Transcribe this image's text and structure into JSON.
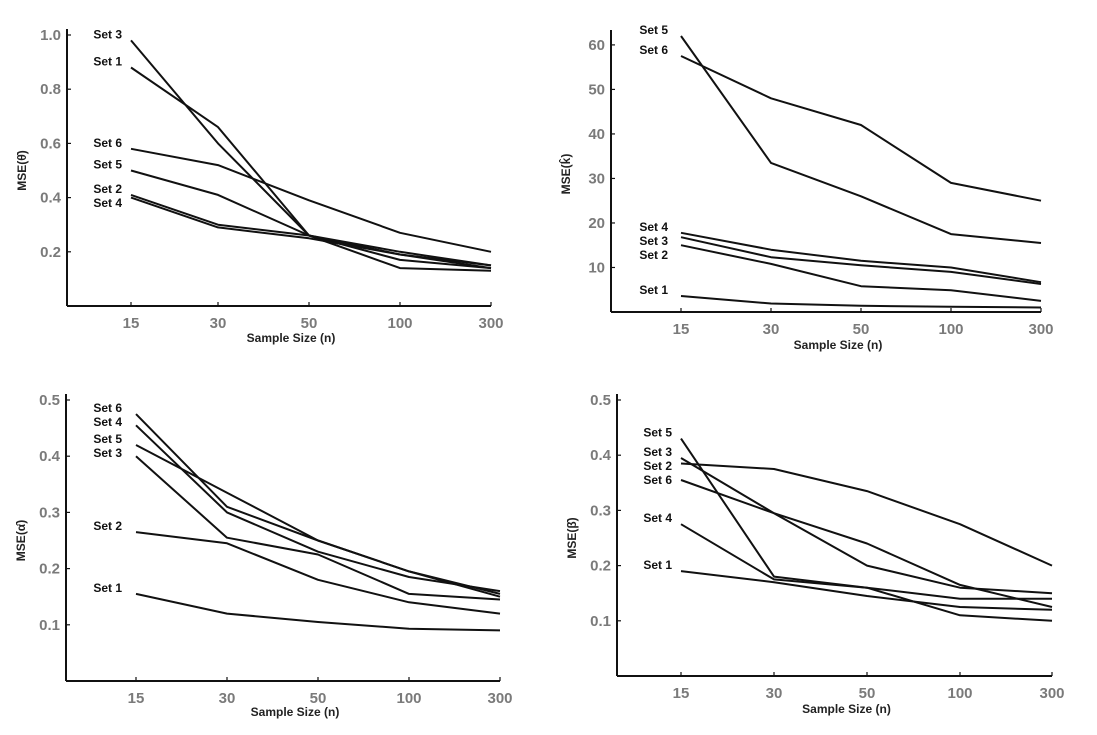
{
  "chart_data": [
    {
      "type": "line",
      "panel": "top-left",
      "title": "",
      "xlabel": "Sample Size (n)",
      "ylabel": "MSE(θ̂)",
      "x": [
        "15",
        "30",
        "50",
        "100",
        "300"
      ],
      "ylim": [
        0,
        1.0
      ],
      "yticks": [
        "0.2",
        "0.4",
        "0.6",
        "0.8",
        "1.0"
      ],
      "ytick_values": [
        0.2,
        0.4,
        0.6,
        0.8,
        1.0
      ],
      "grid": false,
      "legend": "inline-left",
      "series": [
        {
          "name": "Set 3",
          "values": [
            0.98,
            0.6,
            0.26,
            0.17,
            0.14
          ]
        },
        {
          "name": "Set 1",
          "values": [
            0.88,
            0.66,
            0.26,
            0.14,
            0.13
          ]
        },
        {
          "name": "Set 6",
          "values": [
            0.58,
            0.52,
            0.39,
            0.27,
            0.2
          ]
        },
        {
          "name": "Set 5",
          "values": [
            0.5,
            0.41,
            0.26,
            0.19,
            0.15
          ]
        },
        {
          "name": "Set 2",
          "values": [
            0.41,
            0.3,
            0.26,
            0.2,
            0.15
          ]
        },
        {
          "name": "Set 4",
          "values": [
            0.4,
            0.29,
            0.25,
            0.19,
            0.14
          ]
        }
      ],
      "label_order": [
        "Set 3",
        "Set 1",
        "Set 6",
        "Set 5",
        "Set 2",
        "Set 4"
      ]
    },
    {
      "type": "line",
      "panel": "top-right",
      "title": "",
      "xlabel": "Sample Size (n)",
      "ylabel": "MSE(k̂)",
      "x": [
        "15",
        "30",
        "50",
        "100",
        "300"
      ],
      "ylim": [
        0,
        62
      ],
      "yticks": [
        "10",
        "20",
        "30",
        "40",
        "50",
        "60"
      ],
      "ytick_values": [
        10,
        20,
        30,
        40,
        50,
        60
      ],
      "grid": false,
      "legend": "inline-left",
      "series": [
        {
          "name": "Set 5",
          "values": [
            62,
            33.5,
            26,
            17.5,
            15.5
          ]
        },
        {
          "name": "Set 6",
          "values": [
            57.5,
            48,
            42,
            29,
            25
          ]
        },
        {
          "name": "Set 4",
          "values": [
            17.8,
            14,
            11.5,
            10,
            6.7
          ]
        },
        {
          "name": "Set 3",
          "values": [
            16.8,
            12.3,
            10.5,
            9,
            6.3
          ]
        },
        {
          "name": "Set 2",
          "values": [
            15,
            10.8,
            5.8,
            4.9,
            2.5
          ]
        },
        {
          "name": "Set 1",
          "values": [
            3.6,
            1.9,
            1.4,
            1.2,
            1.0
          ]
        }
      ],
      "label_order": [
        "Set 5",
        "Set 6",
        "Set 4",
        "Set 3",
        "Set 2",
        "Set 1"
      ]
    },
    {
      "type": "line",
      "panel": "bottom-left",
      "title": "",
      "xlabel": "Sample Size (n)",
      "ylabel": "MSE(α̂)",
      "x": [
        "15",
        "30",
        "50",
        "100",
        "300"
      ],
      "ylim": [
        0,
        0.5
      ],
      "yticks": [
        "0.1",
        "0.2",
        "0.3",
        "0.4",
        "0.5"
      ],
      "ytick_values": [
        0.1,
        0.2,
        0.3,
        0.4,
        0.5
      ],
      "grid": false,
      "legend": "inline-left",
      "series": [
        {
          "name": "Set 6",
          "values": [
            0.475,
            0.31,
            0.25,
            0.195,
            0.15
          ]
        },
        {
          "name": "Set 4",
          "values": [
            0.455,
            0.3,
            0.23,
            0.185,
            0.16
          ]
        },
        {
          "name": "Set 5",
          "values": [
            0.42,
            0.335,
            0.25,
            0.195,
            0.155
          ]
        },
        {
          "name": "Set 3",
          "values": [
            0.4,
            0.255,
            0.225,
            0.155,
            0.145
          ]
        },
        {
          "name": "Set 2",
          "values": [
            0.265,
            0.245,
            0.18,
            0.14,
            0.12
          ]
        },
        {
          "name": "Set 1",
          "values": [
            0.155,
            0.12,
            0.105,
            0.093,
            0.09
          ]
        }
      ],
      "label_order": [
        "Set 6",
        "Set 4",
        "Set 5",
        "Set 3",
        "Set 2",
        "Set 1"
      ]
    },
    {
      "type": "line",
      "panel": "bottom-right",
      "title": "",
      "xlabel": "Sample Size (n)",
      "ylabel": "MSE(β̂)",
      "x": [
        "15",
        "30",
        "50",
        "100",
        "300"
      ],
      "ylim": [
        0,
        0.5
      ],
      "yticks": [
        "0.1",
        "0.2",
        "0.3",
        "0.4",
        "0.5"
      ],
      "ytick_values": [
        0.1,
        0.2,
        0.3,
        0.4,
        0.5
      ],
      "grid": false,
      "legend": "inline-left",
      "series": [
        {
          "name": "Set 5",
          "values": [
            0.43,
            0.18,
            0.16,
            0.11,
            0.1
          ]
        },
        {
          "name": "Set 3",
          "values": [
            0.395,
            0.295,
            0.2,
            0.16,
            0.15
          ]
        },
        {
          "name": "Set 2",
          "values": [
            0.385,
            0.375,
            0.335,
            0.275,
            0.2
          ]
        },
        {
          "name": "Set 6",
          "values": [
            0.355,
            0.295,
            0.24,
            0.165,
            0.125
          ]
        },
        {
          "name": "Set 4",
          "values": [
            0.275,
            0.175,
            0.16,
            0.14,
            0.14
          ]
        },
        {
          "name": "Set 1",
          "values": [
            0.19,
            0.17,
            0.145,
            0.125,
            0.12
          ]
        }
      ],
      "label_order": [
        "Set 5",
        "Set 3",
        "Set 2",
        "Set 6",
        "Set 4",
        "Set 1"
      ]
    }
  ],
  "colors": {
    "line": "#111111",
    "tick_label": "#7a7a7a",
    "background": "#ffffff"
  }
}
